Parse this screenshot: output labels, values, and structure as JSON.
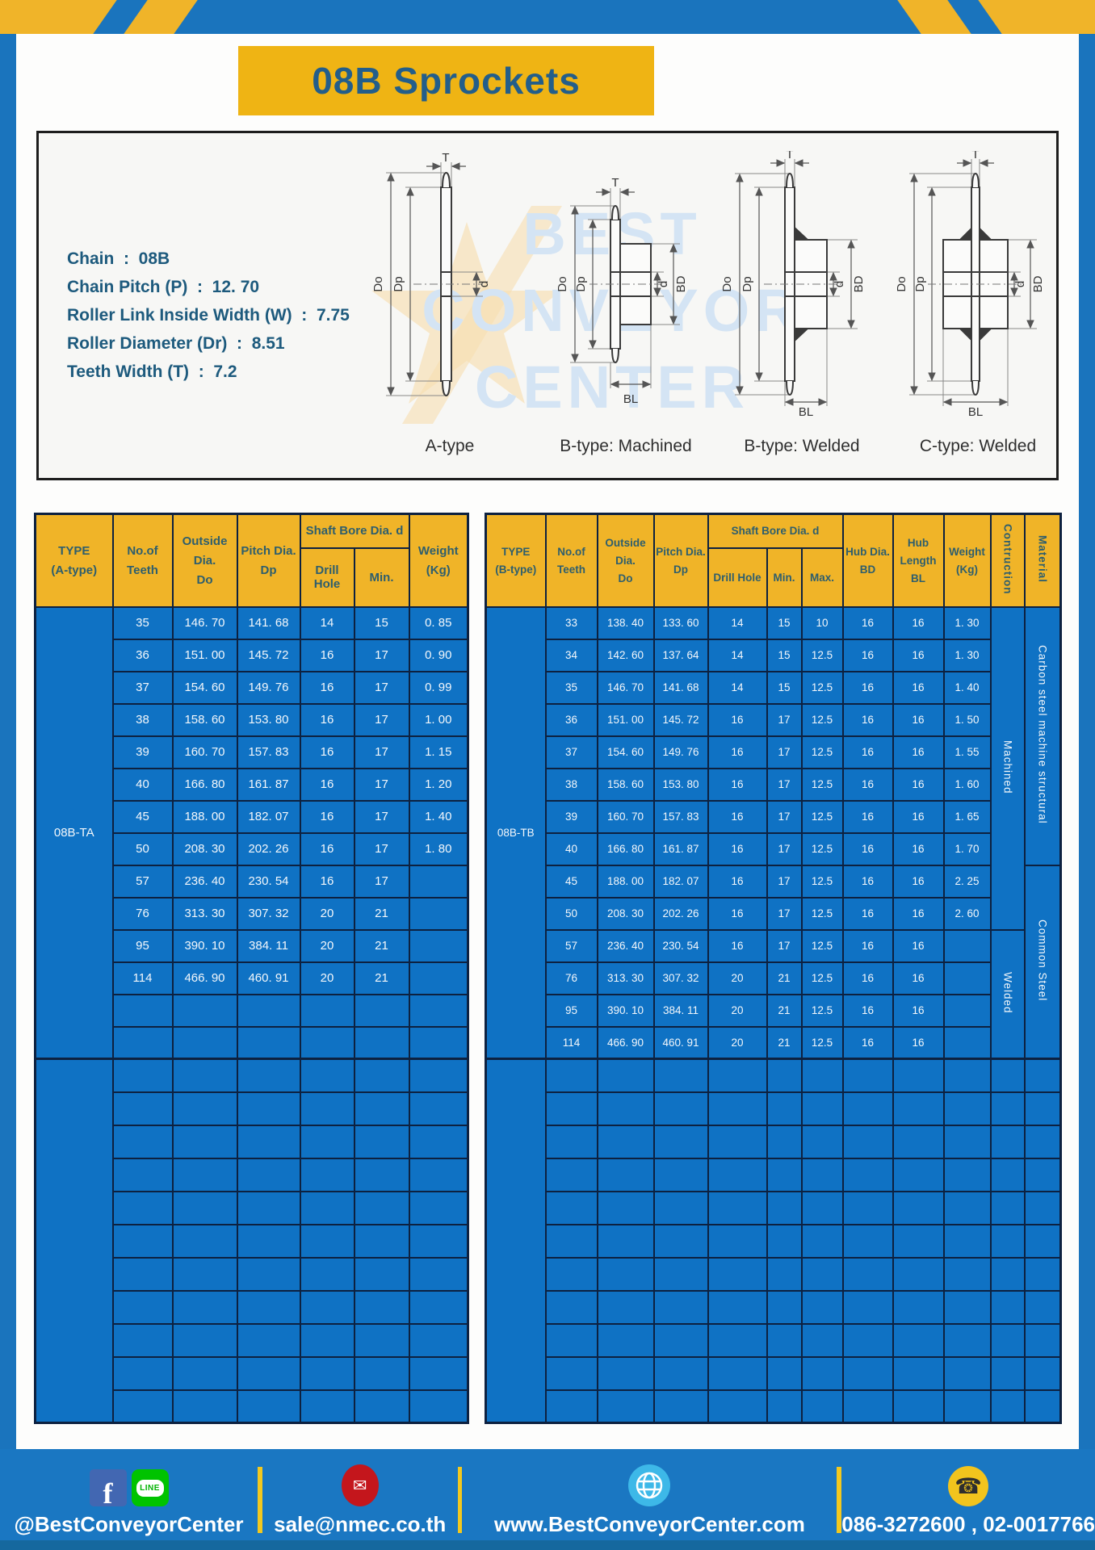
{
  "page": {
    "title": "08B Sprockets"
  },
  "colors": {
    "frame_blue": "#1a74bd",
    "table_blue": "#0f72c4",
    "header_yellow": "#f0b428",
    "title_yellow": "#efb414",
    "divider_yellow": "#f2c81f",
    "border_navy": "#0d2140"
  },
  "specs": {
    "lines": [
      {
        "label": "Chain",
        "value": "08B"
      },
      {
        "label": "Chain Pitch (P)",
        "value": "12. 70"
      },
      {
        "label": "Roller Link Inside Width (W)",
        "value": "7.75"
      },
      {
        "label": "Roller Diameter (Dr)",
        "value": "8.51"
      },
      {
        "label": "Teeth Width (T)",
        "value": "7.2"
      }
    ]
  },
  "diagram": {
    "dims": {
      "T": "T",
      "Do": "Do",
      "Dp": "Dp",
      "d": "d",
      "BD": "BD",
      "BL": "BL"
    },
    "types": [
      "A-type",
      "B-type: Machined",
      "B-type: Welded",
      "C-type: Welded"
    ],
    "watermark": [
      "BEST",
      "CONVEYOR",
      "CENTER"
    ]
  },
  "table_a": {
    "header": {
      "type_l1": "TYPE",
      "type_l2": "(A-type)",
      "teeth_l1": "No.of",
      "teeth_l2": "Teeth",
      "outside_l1": "Outside",
      "outside_l2": "Dia.",
      "outside_l3": "Do",
      "pitch_l1": "Pitch Dia.",
      "pitch_l2": "Dp",
      "shaft_bore": "Shaft Bore Dia. d",
      "drill": "Drill Hole",
      "min": "Min.",
      "weight_l1": "Weight",
      "weight_l2": "(Kg)"
    },
    "group_label": "08B-TA",
    "rows": [
      [
        "35",
        "146. 70",
        "141. 68",
        "14",
        "15",
        "0. 85"
      ],
      [
        "36",
        "151. 00",
        "145. 72",
        "16",
        "17",
        "0. 90"
      ],
      [
        "37",
        "154. 60",
        "149. 76",
        "16",
        "17",
        "0. 99"
      ],
      [
        "38",
        "158. 60",
        "153. 80",
        "16",
        "17",
        "1. 00"
      ],
      [
        "39",
        "160. 70",
        "157. 83",
        "16",
        "17",
        "1. 15"
      ],
      [
        "40",
        "166. 80",
        "161. 87",
        "16",
        "17",
        "1. 20"
      ],
      [
        "45",
        "188. 00",
        "182. 07",
        "16",
        "17",
        "1. 40"
      ],
      [
        "50",
        "208. 30",
        "202. 26",
        "16",
        "17",
        "1. 80"
      ],
      [
        "57",
        "236. 40",
        "230. 54",
        "16",
        "17",
        ""
      ],
      [
        "76",
        "313. 30",
        "307. 32",
        "20",
        "21",
        ""
      ],
      [
        "95",
        "390. 10",
        "384. 11",
        "20",
        "21",
        ""
      ],
      [
        "114",
        "466. 90",
        "460. 91",
        "20",
        "21",
        ""
      ]
    ],
    "blank_rows_in_group": 2,
    "blank_rows_below": 11
  },
  "table_b": {
    "header": {
      "type_l1": "TYPE",
      "type_l2": "(B-type)",
      "teeth_l1": "No.of",
      "teeth_l2": "Teeth",
      "outside_l1": "Outside",
      "outside_l2": "Dia.",
      "outside_l3": "Do",
      "pitch_l1": "Pitch Dia.",
      "pitch_l2": "Dp",
      "shaft_bore": "Shaft Bore Dia. d",
      "drill": "Drill Hole",
      "min": "Min.",
      "max": "Max.",
      "hubdia_l1": "Hub Dia.",
      "hubdia_l2": "BD",
      "hublen_l1": "Hub",
      "hublen_l2": "Length",
      "hublen_l3": "BL",
      "weight_l1": "Weight",
      "weight_l2": "(Kg)",
      "construction": "Contruction",
      "material": "Material"
    },
    "group_label": "08B-TB",
    "rows": [
      [
        "33",
        "138. 40",
        "133. 60",
        "14",
        "15",
        "10",
        "16",
        "16",
        "1. 30"
      ],
      [
        "34",
        "142. 60",
        "137. 64",
        "14",
        "15",
        "12.5",
        "16",
        "16",
        "1. 30"
      ],
      [
        "35",
        "146. 70",
        "141. 68",
        "14",
        "15",
        "12.5",
        "16",
        "16",
        "1. 40"
      ],
      [
        "36",
        "151. 00",
        "145. 72",
        "16",
        "17",
        "12.5",
        "16",
        "16",
        "1. 50"
      ],
      [
        "37",
        "154. 60",
        "149. 76",
        "16",
        "17",
        "12.5",
        "16",
        "16",
        "1. 55"
      ],
      [
        "38",
        "158. 60",
        "153. 80",
        "16",
        "17",
        "12.5",
        "16",
        "16",
        "1. 60"
      ],
      [
        "39",
        "160. 70",
        "157. 83",
        "16",
        "17",
        "12.5",
        "16",
        "16",
        "1. 65"
      ],
      [
        "40",
        "166. 80",
        "161. 87",
        "16",
        "17",
        "12.5",
        "16",
        "16",
        "1. 70"
      ],
      [
        "45",
        "188. 00",
        "182. 07",
        "16",
        "17",
        "12.5",
        "16",
        "16",
        "2. 25"
      ],
      [
        "50",
        "208. 30",
        "202. 26",
        "16",
        "17",
        "12.5",
        "16",
        "16",
        "2. 60"
      ],
      [
        "57",
        "236. 40",
        "230. 54",
        "16",
        "17",
        "12.5",
        "16",
        "16",
        ""
      ],
      [
        "76",
        "313. 30",
        "307. 32",
        "20",
        "21",
        "12.5",
        "16",
        "16",
        ""
      ],
      [
        "95",
        "390. 10",
        "384. 11",
        "20",
        "21",
        "12.5",
        "16",
        "16",
        ""
      ],
      [
        "114",
        "466. 90",
        "460. 91",
        "20",
        "21",
        "12.5",
        "16",
        "16",
        ""
      ]
    ],
    "construction_spans": [
      {
        "label": "Machined",
        "span": 10
      },
      {
        "label": "Welded",
        "span": 4
      }
    ],
    "material_spans": [
      {
        "label": "Carbon steel  machine structural",
        "span": 8
      },
      {
        "label": "Common  Steel",
        "span": 6
      }
    ],
    "blank_rows_in_group": 0,
    "blank_rows_below": 11
  },
  "footer": {
    "social": "@BestConveyorCenter",
    "line_label": "LINE",
    "email": "sale@nmec.co.th",
    "website": "www.BestConveyorCenter.com",
    "phone": "086-3272600 , 02-0017766"
  }
}
